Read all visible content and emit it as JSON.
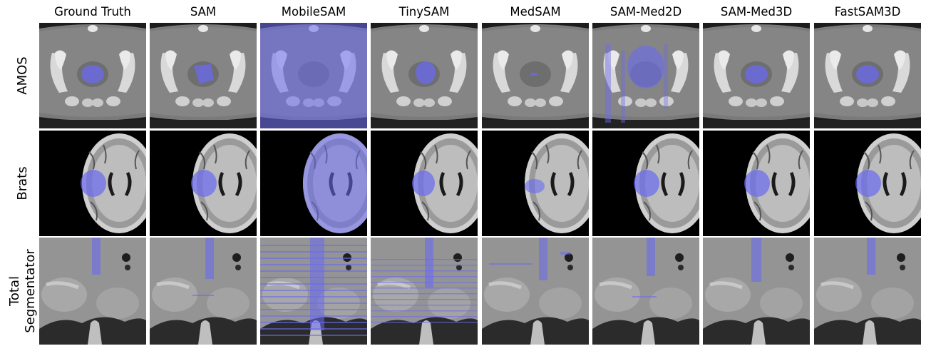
{
  "columns": [
    "Ground Truth",
    "SAM",
    "MobileSAM",
    "TinySAM",
    "MedSAM",
    "SAM-Med2D",
    "SAM-Med3D",
    "FastSAM3D"
  ],
  "rows": [
    {
      "label": "AMOS",
      "type": "ct-axial"
    },
    {
      "label": "Brats",
      "type": "mri-brain"
    },
    {
      "label": "Total\nSegmentator",
      "type": "ct-coronal"
    }
  ],
  "colors": {
    "mask": "#6a6af0",
    "background": "#ffffff"
  }
}
